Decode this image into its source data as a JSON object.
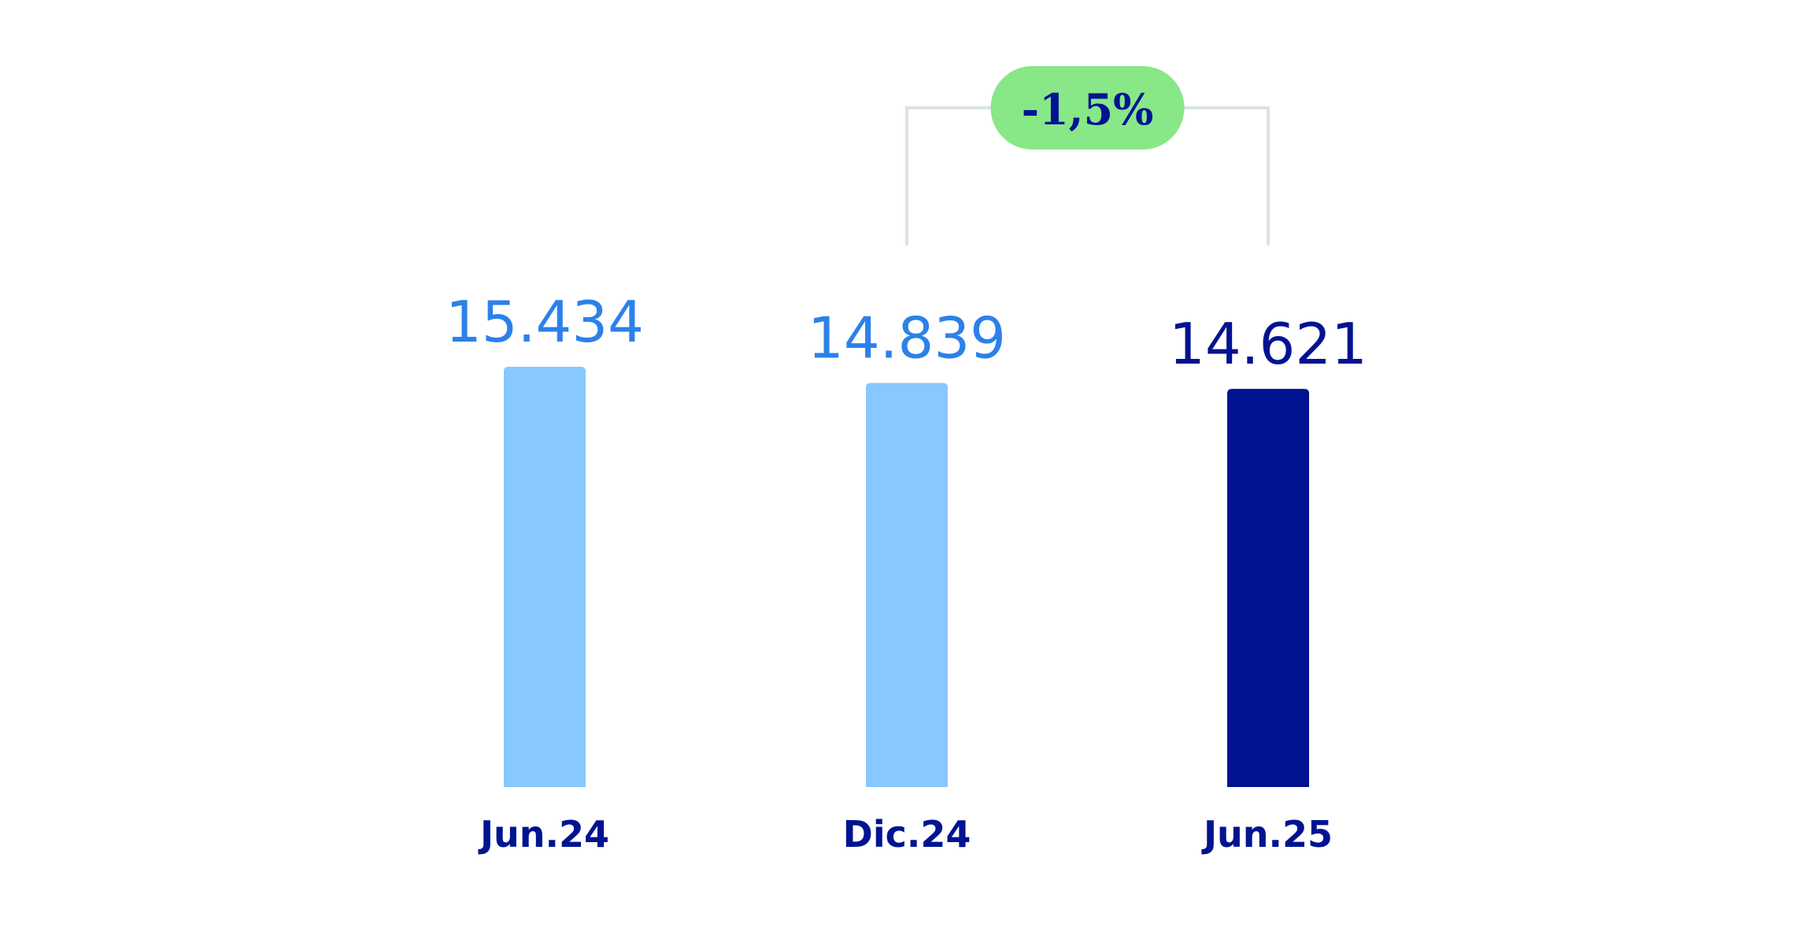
{
  "chart_data": {
    "type": "bar",
    "categories": [
      "Jun.24",
      "Dic.24",
      "Jun.25"
    ],
    "values": [
      15434,
      14839,
      14621
    ],
    "value_labels": [
      "15.434",
      "14.839",
      "14.621"
    ],
    "highlighted_index": 2,
    "title": "",
    "xlabel": "",
    "ylabel": "",
    "grid": false,
    "legend": "none",
    "change_annotation": {
      "text": "-1,5%",
      "from_index": 1,
      "to_index": 2
    }
  },
  "colors": {
    "bar_light": "#87C8FF",
    "bar_dark": "#001391",
    "value_light": "#2C81E9",
    "value_dark": "#001391",
    "category_text": "#001391",
    "badge_fill": "#88E787",
    "badge_text": "#001391",
    "bracket_line": "#DDE1E8"
  }
}
